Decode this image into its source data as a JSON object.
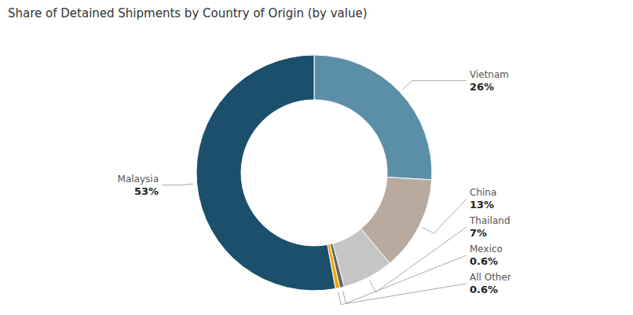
{
  "chart_data": {
    "type": "donut",
    "title": "Share of Detained Shipments by Country of Origin (by value)",
    "categories": [
      "Vietnam",
      "China",
      "Thailand",
      "Mexico",
      "All Other",
      "Malaysia"
    ],
    "values": [
      26,
      13,
      7,
      0.6,
      0.6,
      53
    ],
    "value_labels": [
      "26%",
      "13%",
      "7%",
      "0.6%",
      "0.6%",
      "53%"
    ],
    "colors": [
      "#5b8fa8",
      "#b8aa9e",
      "#c5c5c5",
      "#666666",
      "#f5a800",
      "#1b4f6b"
    ],
    "data_labels": true
  }
}
